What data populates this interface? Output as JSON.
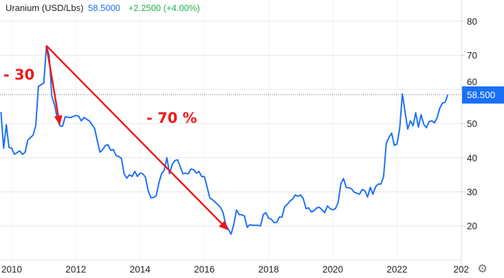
{
  "header": {
    "name": "Uranium (USD/Lbs)",
    "last": "58.5000",
    "change": "+2.2500 (+4.00%)"
  },
  "settings_icon": "gear-icon",
  "colors": {
    "line": "#1a6ff5",
    "badge": "#1a6ff5",
    "change": "#1fb24b",
    "annotation": "#f01818",
    "grid": "#e6e6e6"
  },
  "chart_data": {
    "type": "line",
    "title": "Uranium (USD/Lbs)",
    "y_axis_side": "right",
    "ylim": [
      10,
      85
    ],
    "yticks": [
      "80",
      "70",
      "60",
      "50",
      "40",
      "30",
      "20"
    ],
    "xticks": [
      "2010",
      "2012",
      "2014",
      "2016",
      "2018",
      "2020",
      "2022",
      "202"
    ],
    "grid": true,
    "last_value_badge": "58.500",
    "last_value": 58.5,
    "series": [
      {
        "points": [
          [
            "2009-09",
            53.4
          ],
          [
            "2009-10",
            42.8
          ],
          [
            "2009-11",
            49.7
          ],
          [
            "2009-12",
            43
          ],
          [
            "2010-01",
            42.8
          ],
          [
            "2010-02",
            41
          ],
          [
            "2010-04",
            42
          ],
          [
            "2010-05",
            41
          ],
          [
            "2010-06",
            41.6
          ],
          [
            "2010-07",
            45.2
          ],
          [
            "2010-09",
            46.6
          ],
          [
            "2010-10",
            49.4
          ],
          [
            "2010-11",
            60.9
          ],
          [
            "2011-01",
            61.9
          ],
          [
            "2011-02",
            72.8
          ],
          [
            "2011-03",
            70
          ],
          [
            "2011-04",
            58
          ],
          [
            "2011-05",
            55.5
          ],
          [
            "2011-06",
            51.6
          ],
          [
            "2011-07",
            49.4
          ],
          [
            "2011-08",
            49.2
          ],
          [
            "2011-09",
            52
          ],
          [
            "2011-11",
            51.8
          ],
          [
            "2012-01",
            52.4
          ],
          [
            "2012-02",
            52.2
          ],
          [
            "2012-03",
            50.8
          ],
          [
            "2012-04",
            51.8
          ],
          [
            "2012-06",
            50.8
          ],
          [
            "2012-08",
            48.6
          ],
          [
            "2012-09",
            45
          ],
          [
            "2012-10",
            41.6
          ],
          [
            "2012-11",
            42.4
          ],
          [
            "2012-12",
            43.6
          ],
          [
            "2013-01",
            43.8
          ],
          [
            "2013-02",
            42.2
          ],
          [
            "2013-03",
            42.4
          ],
          [
            "2013-04",
            40.6
          ],
          [
            "2013-05",
            40.4
          ],
          [
            "2013-06",
            39.8
          ],
          [
            "2013-07",
            35.3
          ],
          [
            "2013-08",
            34
          ],
          [
            "2013-09",
            35
          ],
          [
            "2013-10",
            34.5
          ],
          [
            "2013-11",
            36
          ],
          [
            "2013-12",
            34.5
          ],
          [
            "2014-01",
            35.5
          ],
          [
            "2014-02",
            35.3
          ],
          [
            "2014-03",
            34.3
          ],
          [
            "2014-04",
            30.3
          ],
          [
            "2014-05",
            28.3
          ],
          [
            "2014-06",
            28.3
          ],
          [
            "2014-07",
            28.9
          ],
          [
            "2014-08",
            32.5
          ],
          [
            "2014-09",
            35.3
          ],
          [
            "2014-10",
            36.3
          ],
          [
            "2014-11",
            40
          ],
          [
            "2014-12",
            35.3
          ],
          [
            "2015-01",
            38
          ],
          [
            "2015-02",
            39.2
          ],
          [
            "2015-03",
            39.4
          ],
          [
            "2015-04",
            37.3
          ],
          [
            "2015-05",
            35.3
          ],
          [
            "2015-06",
            35.5
          ],
          [
            "2015-07",
            35.3
          ],
          [
            "2015-08",
            36.7
          ],
          [
            "2015-09",
            36.5
          ],
          [
            "2015-10",
            35.5
          ],
          [
            "2015-11",
            36
          ],
          [
            "2015-12",
            34.5
          ],
          [
            "2016-01",
            34.5
          ],
          [
            "2016-02",
            31.5
          ],
          [
            "2016-03",
            28.3
          ],
          [
            "2016-04",
            27.7
          ],
          [
            "2016-05",
            27
          ],
          [
            "2016-06",
            26.3
          ],
          [
            "2016-07",
            25.5
          ],
          [
            "2016-08",
            23.9
          ],
          [
            "2016-09",
            20.4
          ],
          [
            "2016-11",
            17.6
          ],
          [
            "2016-12",
            20.4
          ],
          [
            "2017-01",
            24.7
          ],
          [
            "2017-02",
            23.3
          ],
          [
            "2017-03",
            23.3
          ],
          [
            "2017-04",
            22.9
          ],
          [
            "2017-05",
            19.6
          ],
          [
            "2017-06",
            20.4
          ],
          [
            "2017-07",
            20.2
          ],
          [
            "2017-08",
            20.2
          ],
          [
            "2017-09",
            20.2
          ],
          [
            "2017-10",
            20
          ],
          [
            "2017-11",
            23.3
          ],
          [
            "2017-12",
            23.9
          ],
          [
            "2018-01",
            22.3
          ],
          [
            "2018-02",
            22
          ],
          [
            "2018-03",
            21
          ],
          [
            "2018-04",
            21
          ],
          [
            "2018-05",
            22.6
          ],
          [
            "2018-06",
            22.6
          ],
          [
            "2018-07",
            25.7
          ],
          [
            "2018-08",
            26.3
          ],
          [
            "2018-09",
            27.3
          ],
          [
            "2018-10",
            27.9
          ],
          [
            "2018-11",
            29.1
          ],
          [
            "2018-12",
            28.7
          ],
          [
            "2019-01",
            29.1
          ],
          [
            "2019-02",
            27.9
          ],
          [
            "2019-03",
            25.1
          ],
          [
            "2019-04",
            25.3
          ],
          [
            "2019-05",
            24.1
          ],
          [
            "2019-06",
            24.5
          ],
          [
            "2019-07",
            25.3
          ],
          [
            "2019-08",
            25.5
          ],
          [
            "2019-10",
            23.9
          ],
          [
            "2019-11",
            25.9
          ],
          [
            "2019-12",
            25.1
          ],
          [
            "2020-01",
            24.7
          ],
          [
            "2020-02",
            25.1
          ],
          [
            "2020-03",
            26.9
          ],
          [
            "2020-04",
            32.4
          ],
          [
            "2020-05",
            33.9
          ],
          [
            "2020-06",
            31.3
          ],
          [
            "2020-07",
            31.2
          ],
          [
            "2020-08",
            30.9
          ],
          [
            "2020-09",
            29.9
          ],
          [
            "2020-11",
            29.3
          ],
          [
            "2020-12",
            30.7
          ],
          [
            "2021-01",
            30.3
          ],
          [
            "2021-02",
            28.5
          ],
          [
            "2021-03",
            31.3
          ],
          [
            "2021-04",
            29.3
          ],
          [
            "2021-05",
            31.5
          ],
          [
            "2021-06",
            32.3
          ],
          [
            "2021-07",
            32.3
          ],
          [
            "2021-08",
            34.5
          ],
          [
            "2021-09",
            44.2
          ],
          [
            "2021-10",
            46
          ],
          [
            "2021-11",
            47.2
          ],
          [
            "2021-12",
            43.6
          ],
          [
            "2022-01",
            44
          ],
          [
            "2022-02",
            48.6
          ],
          [
            "2022-03",
            58.7
          ],
          [
            "2022-04",
            53.4
          ],
          [
            "2022-05",
            48.4
          ],
          [
            "2022-06",
            50.8
          ],
          [
            "2022-07",
            49.4
          ],
          [
            "2022-08",
            53.2
          ],
          [
            "2022-09",
            49
          ],
          [
            "2022-10",
            52.6
          ],
          [
            "2022-11",
            49.8
          ],
          [
            "2022-12",
            48.8
          ],
          [
            "2023-01",
            50.6
          ],
          [
            "2023-02",
            50.8
          ],
          [
            "2023-03",
            50.2
          ],
          [
            "2023-04",
            51.8
          ],
          [
            "2023-05",
            54.6
          ],
          [
            "2023-06",
            56
          ],
          [
            "2023-07",
            56.3
          ],
          [
            "2023-08",
            58.5
          ]
        ]
      }
    ],
    "annotations": [
      {
        "text": "- 30",
        "arrow_from": [
          "2011-02",
          72.8
        ],
        "arrow_to": [
          "2011-07",
          49.5
        ]
      },
      {
        "text": "- 70 %",
        "arrow_from": [
          "2011-02",
          72.8
        ],
        "arrow_to": [
          "2016-10",
          18.7
        ]
      }
    ]
  }
}
